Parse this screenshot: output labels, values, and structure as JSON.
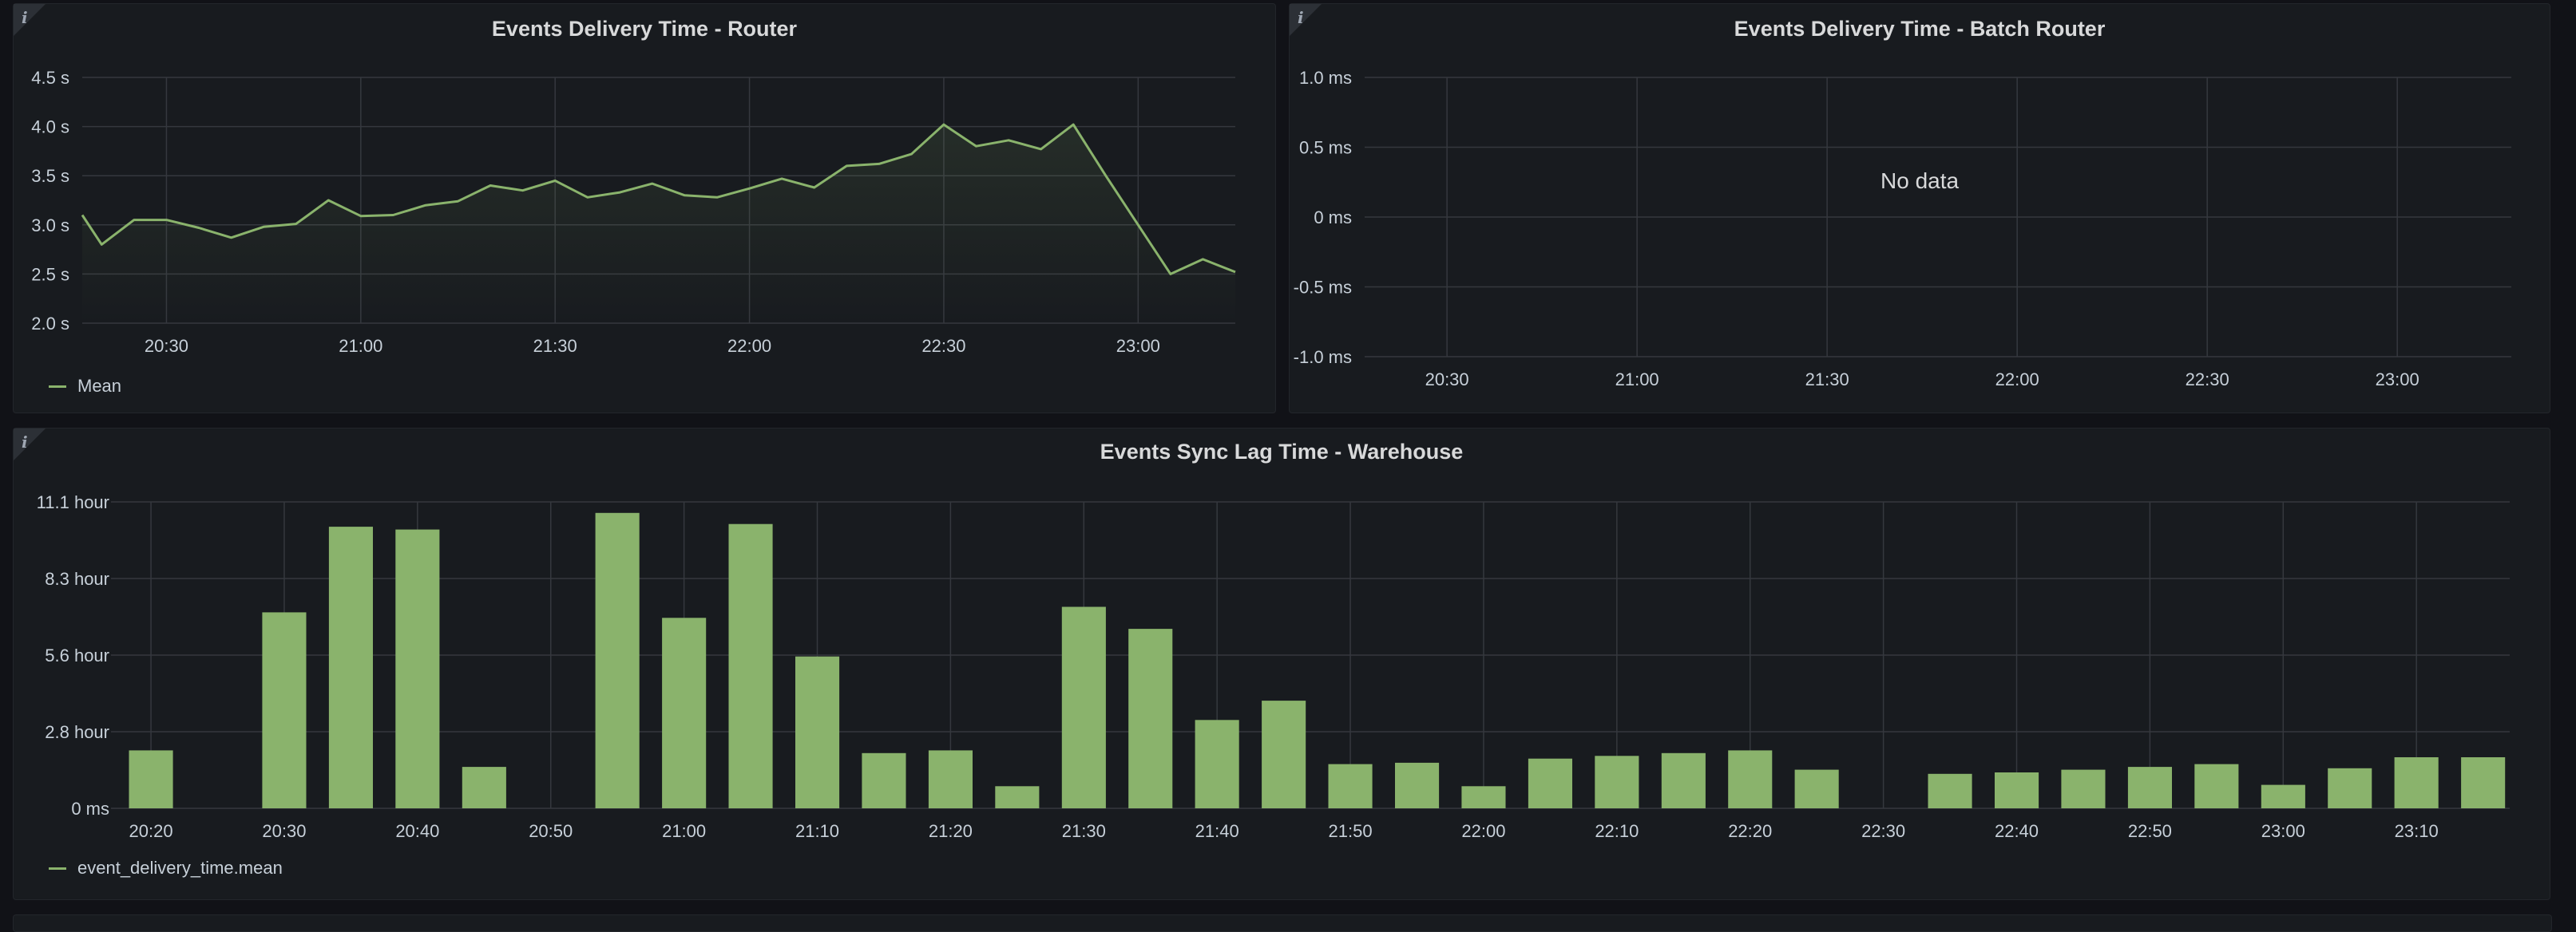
{
  "colors": {
    "series": "#8ab36c",
    "grid": "#35383e",
    "panel": "#181b1f",
    "text": "#c7d0d9"
  },
  "icons": {
    "info": "info-icon"
  },
  "panels": {
    "router": {
      "title": "Events Delivery Time - Router",
      "info_glyph": "i",
      "legend": "Mean"
    },
    "batch": {
      "title": "Events Delivery Time - Batch Router",
      "info_glyph": "i",
      "no_data": "No data"
    },
    "warehouse": {
      "title": "Events Sync Lag Time - Warehouse",
      "info_glyph": "i",
      "legend": "event_delivery_time.mean"
    }
  },
  "chart_data": [
    {
      "type": "line",
      "title": "Events Delivery Time - Router",
      "x_unit": "time of day",
      "x": [
        "20:17",
        "20:20",
        "20:25",
        "20:30",
        "20:35",
        "20:40",
        "20:45",
        "20:50",
        "20:55",
        "21:00",
        "21:05",
        "21:10",
        "21:15",
        "21:20",
        "21:25",
        "21:30",
        "21:35",
        "21:40",
        "21:45",
        "21:50",
        "21:55",
        "22:00",
        "22:05",
        "22:10",
        "22:15",
        "22:20",
        "22:25",
        "22:30",
        "22:35",
        "22:40",
        "22:45",
        "22:50",
        "22:55",
        "23:00",
        "23:05",
        "23:10",
        "23:15"
      ],
      "series": [
        {
          "name": "Mean",
          "values": [
            3.1,
            2.8,
            3.05,
            3.05,
            2.97,
            2.87,
            2.98,
            3.01,
            3.25,
            3.09,
            3.1,
            3.2,
            3.24,
            3.4,
            3.35,
            3.45,
            3.28,
            3.33,
            3.42,
            3.3,
            3.28,
            3.37,
            3.47,
            3.38,
            3.6,
            3.62,
            3.72,
            4.02,
            3.8,
            3.86,
            3.77,
            4.02,
            3.5,
            3.0,
            2.5,
            2.65,
            2.52
          ]
        }
      ],
      "yticks": [
        "2.0 s",
        "2.5 s",
        "3.0 s",
        "3.5 s",
        "4.0 s",
        "4.5 s"
      ],
      "xticks": [
        "20:30",
        "21:00",
        "21:30",
        "22:00",
        "22:30",
        "23:00"
      ],
      "ylim": [
        2.0,
        4.5
      ],
      "grid": true,
      "legend_position": "bottom-left"
    },
    {
      "type": "line",
      "title": "Events Delivery Time - Batch Router",
      "series": [],
      "yticks": [
        "-1.0 ms",
        "-0.5 ms",
        "0 ms",
        "0.5 ms",
        "1.0 ms"
      ],
      "xticks": [
        "20:30",
        "21:00",
        "21:30",
        "22:00",
        "22:30",
        "23:00"
      ],
      "ylim": [
        -1.0,
        1.0
      ],
      "grid": true
    },
    {
      "type": "bar",
      "title": "Events Sync Lag Time - Warehouse",
      "x_unit": "time of day",
      "categories": [
        "20:20",
        "20:25",
        "20:30",
        "20:35",
        "20:40",
        "20:45",
        "20:50",
        "20:55",
        "21:00",
        "21:05",
        "21:10",
        "21:15",
        "21:20",
        "21:25",
        "21:30",
        "21:35",
        "21:40",
        "21:45",
        "21:50",
        "21:55",
        "22:00",
        "22:05",
        "22:10",
        "22:15",
        "22:20",
        "22:25",
        "22:30",
        "22:35",
        "22:40",
        "22:45",
        "22:50",
        "22:55",
        "23:00",
        "23:05",
        "23:10",
        "23:15"
      ],
      "series": [
        {
          "name": "event_delivery_time.mean",
          "values": [
            2.1,
            0,
            7.1,
            10.2,
            10.1,
            1.5,
            0,
            10.7,
            6.9,
            10.3,
            5.5,
            2.0,
            2.1,
            0.8,
            7.3,
            6.5,
            3.2,
            3.9,
            1.6,
            1.65,
            0.8,
            1.8,
            1.9,
            2.0,
            2.1,
            1.4,
            0,
            1.25,
            1.3,
            1.4,
            1.5,
            1.6,
            0.85,
            1.45,
            1.85,
            1.85
          ]
        }
      ],
      "y_unit": "hour",
      "yticks": [
        "0 ms",
        "2.8 hour",
        "5.6 hour",
        "8.3 hour",
        "11.1 hour"
      ],
      "xticks": [
        "20:20",
        "20:30",
        "20:40",
        "20:50",
        "21:00",
        "21:10",
        "21:20",
        "21:30",
        "21:40",
        "21:50",
        "22:00",
        "22:10",
        "22:20",
        "22:30",
        "22:40",
        "22:50",
        "23:00",
        "23:10"
      ],
      "ylim": [
        0,
        11.1
      ],
      "grid": true,
      "legend_position": "bottom-left"
    }
  ]
}
